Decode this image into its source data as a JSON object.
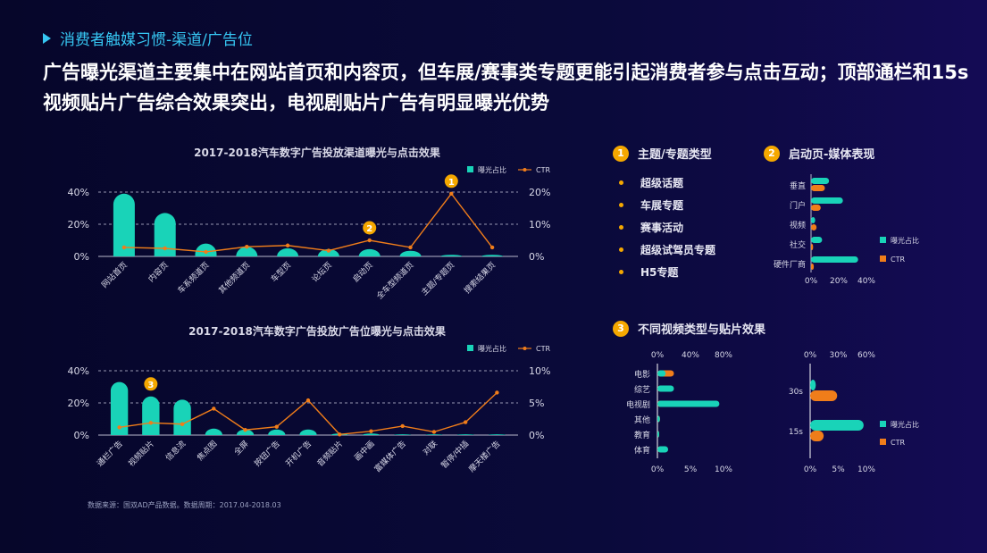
{
  "header": {
    "section": "消费者触媒习惯-渠道/广告位",
    "headline": "广告曝光渠道主要集中在网站首页和内容页，但车展/赛事类专题更能引起消费者参与点击互动；顶部通栏和15s视频贴片广告综合效果突出，电视剧贴片广告有明显曝光优势"
  },
  "source": "数据来源：国双AD产品数据。数据周期：2017.04-2018.03",
  "colors": {
    "teal": "#19d3b8",
    "orange": "#f07d1a",
    "badge": "#f5a800"
  },
  "panels": {
    "p1": {
      "badge": "1",
      "title": "主题/专题类型",
      "items": [
        "超级话题",
        "车展专题",
        "赛事活动",
        "超级试驾员专题",
        "H5专题"
      ]
    },
    "p2": {
      "badge": "2",
      "title": "启动页-媒体表现"
    },
    "p3": {
      "badge": "3",
      "title": "不同视频类型与贴片效果"
    }
  },
  "chart_data": [
    {
      "type": "bar",
      "title": "2017-2018汽车数字广告投放渠道曝光与点击效果",
      "legend": [
        "曝光占比",
        "CTR"
      ],
      "categories": [
        "网站首页",
        "内容页",
        "车系频道页",
        "其他频道页",
        "车型页",
        "论坛页",
        "启动页",
        "全车型频道页",
        "主题/专题页",
        "搜索结果页"
      ],
      "series": [
        {
          "name": "曝光占比",
          "axis": "left",
          "values": [
            39,
            27,
            8,
            6,
            5,
            4.5,
            4.5,
            3.5,
            1,
            1
          ]
        },
        {
          "name": "CTR",
          "axis": "right",
          "type": "line",
          "values": [
            2.8,
            2.5,
            1.4,
            3.0,
            3.4,
            1.8,
            5.0,
            2.8,
            19.5,
            2.8
          ]
        }
      ],
      "y_left": {
        "ticks": [
          "0%",
          "20%",
          "40%"
        ],
        "range": [
          0,
          40
        ]
      },
      "y_right": {
        "ticks": [
          "0%",
          "10%",
          "20%"
        ],
        "range": [
          0,
          20
        ]
      },
      "annotations": [
        {
          "label": "2",
          "category": "启动页"
        },
        {
          "label": "1",
          "category": "主题/专题页"
        }
      ]
    },
    {
      "type": "bar",
      "title": "2017-2018汽车数字广告投放广告位曝光与点击效果",
      "legend": [
        "曝光占比",
        "CTR"
      ],
      "categories": [
        "通栏广告",
        "视频贴片",
        "信息流",
        "焦点图",
        "全屏",
        "按钮广告",
        "开机广告",
        "音频贴片",
        "画中画",
        "富媒体广告",
        "对联",
        "暂停/中插",
        "摩天楼广告"
      ],
      "series": [
        {
          "name": "曝光占比",
          "axis": "left",
          "values": [
            33,
            24,
            22,
            4,
            3.5,
            3.5,
            3.5,
            1,
            1,
            0.5,
            0.5,
            0.5,
            0.5
          ]
        },
        {
          "name": "CTR",
          "axis": "right",
          "type": "line",
          "values": [
            1.2,
            1.9,
            1.7,
            4.1,
            0.8,
            1.3,
            5.4,
            0.1,
            0.6,
            1.4,
            0.5,
            2.0,
            6.6
          ]
        }
      ],
      "y_left": {
        "ticks": [
          "0%",
          "20%",
          "40%"
        ],
        "range": [
          0,
          40
        ]
      },
      "y_right": {
        "ticks": [
          "0%",
          "5%",
          "10%"
        ],
        "range": [
          0,
          10
        ]
      },
      "annotations": [
        {
          "label": "3",
          "category": "视频贴片"
        }
      ]
    },
    {
      "type": "bar",
      "orientation": "horizontal",
      "legend": [
        "曝光占比",
        "CTR"
      ],
      "categories": [
        "垂直",
        "门户",
        "视频",
        "社交",
        "硬件厂商"
      ],
      "series": [
        {
          "name": "曝光占比",
          "values": [
            13,
            23,
            3,
            8,
            34
          ]
        },
        {
          "name": "CTR",
          "values": [
            10,
            7,
            4,
            1.5,
            2
          ]
        }
      ],
      "x": {
        "ticks": [
          "0%",
          "20%",
          "40%"
        ],
        "range": [
          0,
          40
        ]
      }
    },
    {
      "type": "bar",
      "orientation": "horizontal",
      "categories": [
        "电影",
        "综艺",
        "电视剧",
        "其他",
        "教育",
        "体育"
      ],
      "series": [
        {
          "name": "曝光占比",
          "axis": "top",
          "values": [
            10,
            20,
            75,
            3,
            2,
            13
          ]
        },
        {
          "name": "CTR",
          "axis": "bottom",
          "values": [
            2.5,
            2.0,
            0.7,
            0.4,
            0.2,
            1.0
          ]
        }
      ],
      "x_top": {
        "ticks": [
          "0%",
          "40%",
          "80%"
        ],
        "range": [
          0,
          80
        ]
      },
      "x_bottom": {
        "ticks": [
          "0%",
          "5%",
          "10%"
        ],
        "range": [
          0,
          10
        ]
      }
    },
    {
      "type": "bar",
      "orientation": "horizontal",
      "legend": [
        "曝光占比",
        "CTR"
      ],
      "categories": [
        "30s",
        "15s"
      ],
      "series": [
        {
          "name": "曝光占比",
          "axis": "top",
          "values": [
            6,
            57
          ]
        },
        {
          "name": "CTR",
          "axis": "bottom",
          "values": [
            4.8,
            2.4
          ]
        }
      ],
      "x_top": {
        "ticks": [
          "0%",
          "30%",
          "60%"
        ],
        "range": [
          0,
          60
        ]
      },
      "x_bottom": {
        "ticks": [
          "0%",
          "5%",
          "10%"
        ],
        "range": [
          0,
          10
        ]
      }
    }
  ]
}
